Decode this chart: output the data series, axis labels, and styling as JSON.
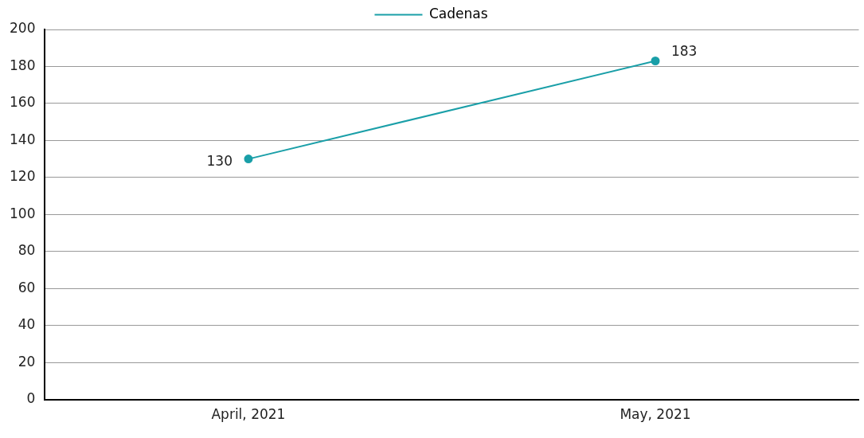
{
  "chart_data": {
    "type": "line",
    "categories": [
      "April, 2021",
      "May, 2021"
    ],
    "series": [
      {
        "name": "Cadenas",
        "color": "#1a9fa8",
        "values": [
          130,
          183
        ]
      }
    ],
    "ylim": [
      0,
      200
    ],
    "yticks": [
      0,
      20,
      40,
      60,
      80,
      100,
      120,
      140,
      160,
      180,
      200
    ],
    "grid": "y",
    "legend": "top",
    "marker": "circle",
    "data_labels": true
  }
}
